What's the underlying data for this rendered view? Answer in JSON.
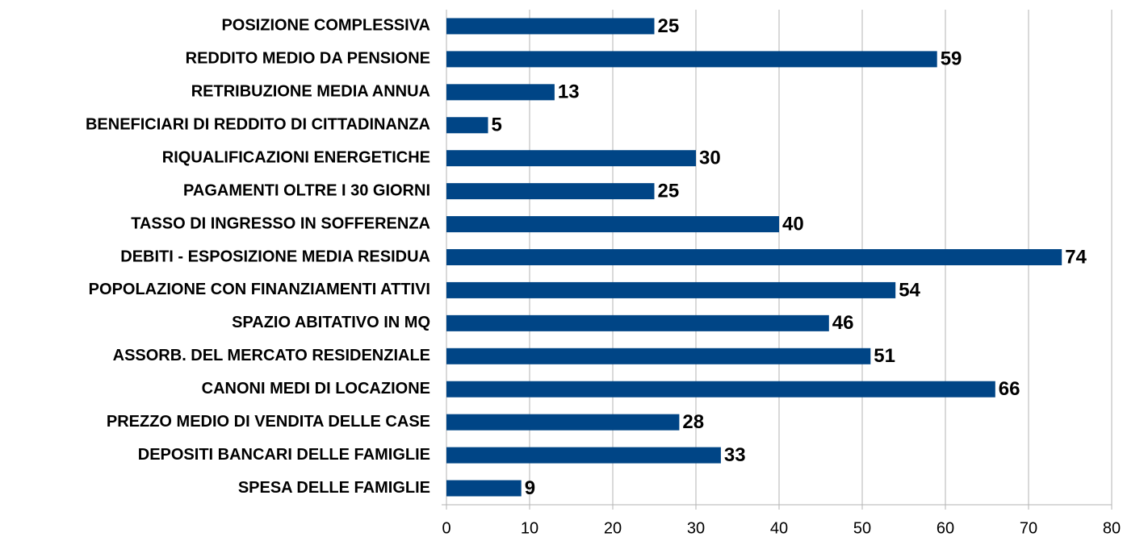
{
  "chart_data": {
    "type": "bar",
    "orientation": "horizontal",
    "categories": [
      "POSIZIONE COMPLESSIVA",
      "REDDITO MEDIO DA PENSIONE",
      "RETRIBUZIONE MEDIA ANNUA",
      "BENEFICIARI DI REDDITO DI CITTADINANZA",
      "RIQUALIFICAZIONI ENERGETICHE",
      "PAGAMENTI OLTRE I 30 GIORNI",
      "TASSO DI INGRESSO IN SOFFERENZA",
      "DEBITI - ESPOSIZIONE MEDIA RESIDUA",
      "POPOLAZIONE CON FINANZIAMENTI ATTIVI",
      "SPAZIO ABITATIVO IN MQ",
      "ASSORB. DEL MERCATO RESIDENZIALE",
      "CANONI MEDI DI LOCAZIONE",
      "PREZZO MEDIO DI VENDITA DELLE CASE",
      "DEPOSITI BANCARI DELLE FAMIGLIE",
      "SPESA DELLE FAMIGLIE"
    ],
    "values": [
      25,
      59,
      13,
      5,
      30,
      25,
      40,
      74,
      54,
      46,
      51,
      66,
      28,
      33,
      9
    ],
    "color": "#004586",
    "xlim": [
      0,
      80
    ],
    "xticks": [
      0,
      10,
      20,
      30,
      40,
      50,
      60,
      70,
      80
    ],
    "grid": true
  }
}
